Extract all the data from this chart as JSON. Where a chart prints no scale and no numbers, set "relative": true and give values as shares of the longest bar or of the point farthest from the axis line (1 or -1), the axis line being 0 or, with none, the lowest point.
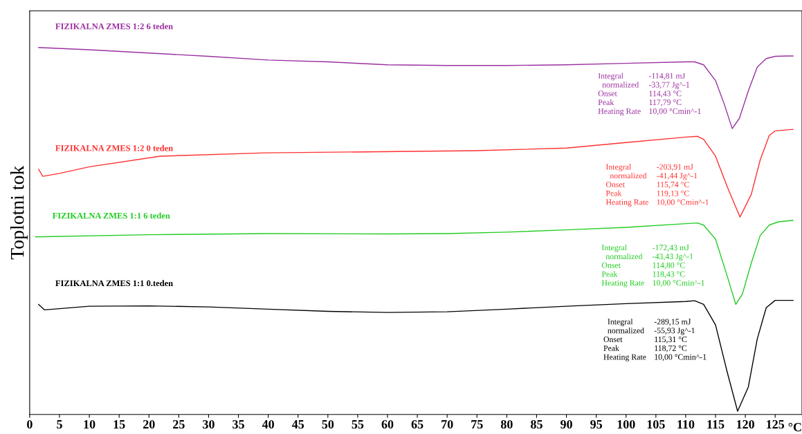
{
  "chart_data": {
    "type": "line",
    "relative": true,
    "ylabel": "Toplotni tok",
    "xlabel": "°C",
    "xlim": [
      0,
      129.5
    ],
    "xticks": [
      0,
      5,
      10,
      15,
      20,
      25,
      30,
      35,
      40,
      45,
      50,
      55,
      60,
      65,
      70,
      75,
      80,
      85,
      90,
      95,
      100,
      105,
      110,
      115,
      120,
      125
    ],
    "grid": false,
    "legend": false,
    "marker": "none",
    "line_style": "solid",
    "series": [
      {
        "name": "FIZIKALNA ZMES 1:2 6 teden",
        "color": "#9b30a0",
        "x": [
          1.5,
          10,
          20,
          30,
          40,
          50,
          60,
          70,
          80,
          90,
          100,
          110,
          111.5,
          113,
          115,
          116.5,
          117.8,
          119,
          120.5,
          122,
          123.5,
          125,
          127,
          128
        ],
        "values": [
          1.0,
          0.994,
          0.985,
          0.976,
          0.966,
          0.961,
          0.953,
          0.951,
          0.951,
          0.953,
          0.957,
          0.961,
          0.961,
          0.953,
          0.91,
          0.844,
          0.779,
          0.807,
          0.882,
          0.947,
          0.97,
          0.976,
          0.977,
          0.977
        ]
      },
      {
        "name": "FIZIKALNA ZMES 1:2 0 teden",
        "color": "#ff3030",
        "x": [
          1.5,
          2.2,
          5,
          10,
          21.9,
          39.8,
          64.3,
          75,
          90,
          100,
          110,
          112,
          113,
          115,
          117,
          119.1,
          121,
          122.5,
          124,
          125,
          128
        ],
        "values": [
          0.668,
          0.649,
          0.657,
          0.675,
          0.704,
          0.713,
          0.717,
          0.719,
          0.726,
          0.741,
          0.756,
          0.758,
          0.75,
          0.704,
          0.619,
          0.538,
          0.6,
          0.694,
          0.76,
          0.773,
          0.777
        ]
      },
      {
        "name": "FIZIKALNA ZMES 1:1 6 teden",
        "color": "#22cc22",
        "x": [
          1,
          20,
          40,
          60,
          70,
          80,
          90,
          100,
          110,
          112,
          113,
          115,
          117,
          118.4,
          119.5,
          121,
          122.5,
          124,
          125.5,
          128
        ],
        "values": [
          0.484,
          0.49,
          0.493,
          0.492,
          0.493,
          0.497,
          0.503,
          0.51,
          0.52,
          0.522,
          0.516,
          0.478,
          0.375,
          0.3,
          0.328,
          0.413,
          0.488,
          0.516,
          0.525,
          0.529
        ]
      },
      {
        "name": "FIZIKALNA ZMES 1:1 0.teden",
        "color": "#000000",
        "x": [
          1.5,
          2.5,
          10,
          20,
          30,
          40,
          50,
          60,
          70,
          80,
          90,
          100,
          110,
          111.5,
          113,
          115,
          117,
          118.7,
          120.5,
          122,
          123.5,
          125,
          128
        ],
        "values": [
          0.3,
          0.285,
          0.295,
          0.296,
          0.293,
          0.287,
          0.281,
          0.278,
          0.28,
          0.287,
          0.295,
          0.302,
          0.308,
          0.31,
          0.3,
          0.244,
          0.113,
          0.009,
          0.075,
          0.206,
          0.291,
          0.311,
          0.311
        ]
      }
    ],
    "annotations": [
      "Integral\n  normalized\nOnset\nPeak\nHeating Rate",
      "-114,81 mJ\n-33,77 Jg^-1\n114,43 °C\n117,79 °C\n10,00 °Cmin^-1",
      "Integral\n  normalized\nOnset\nPeak\nHeating Rate",
      "-203,91 mJ\n-41,44 Jg^-1\n115,74 °C\n119,13 °C\n10,00 °Cmin^-1",
      "Integral\n  normalized\nOnset\nPeak\nHeating Rate",
      "-172,43 mJ\n-43,43 Jg^-1\n114,80 °C\n118,43 °C\n10,00 °Cmin^-1",
      "  Integral\n  normalized\nOnset\nPeak\nHeating Rate",
      "-289,15 mJ\n-55,93 Jg^-1\n115,31 °C\n118,72 °C\n10,00 °Cmin^-1"
    ]
  }
}
